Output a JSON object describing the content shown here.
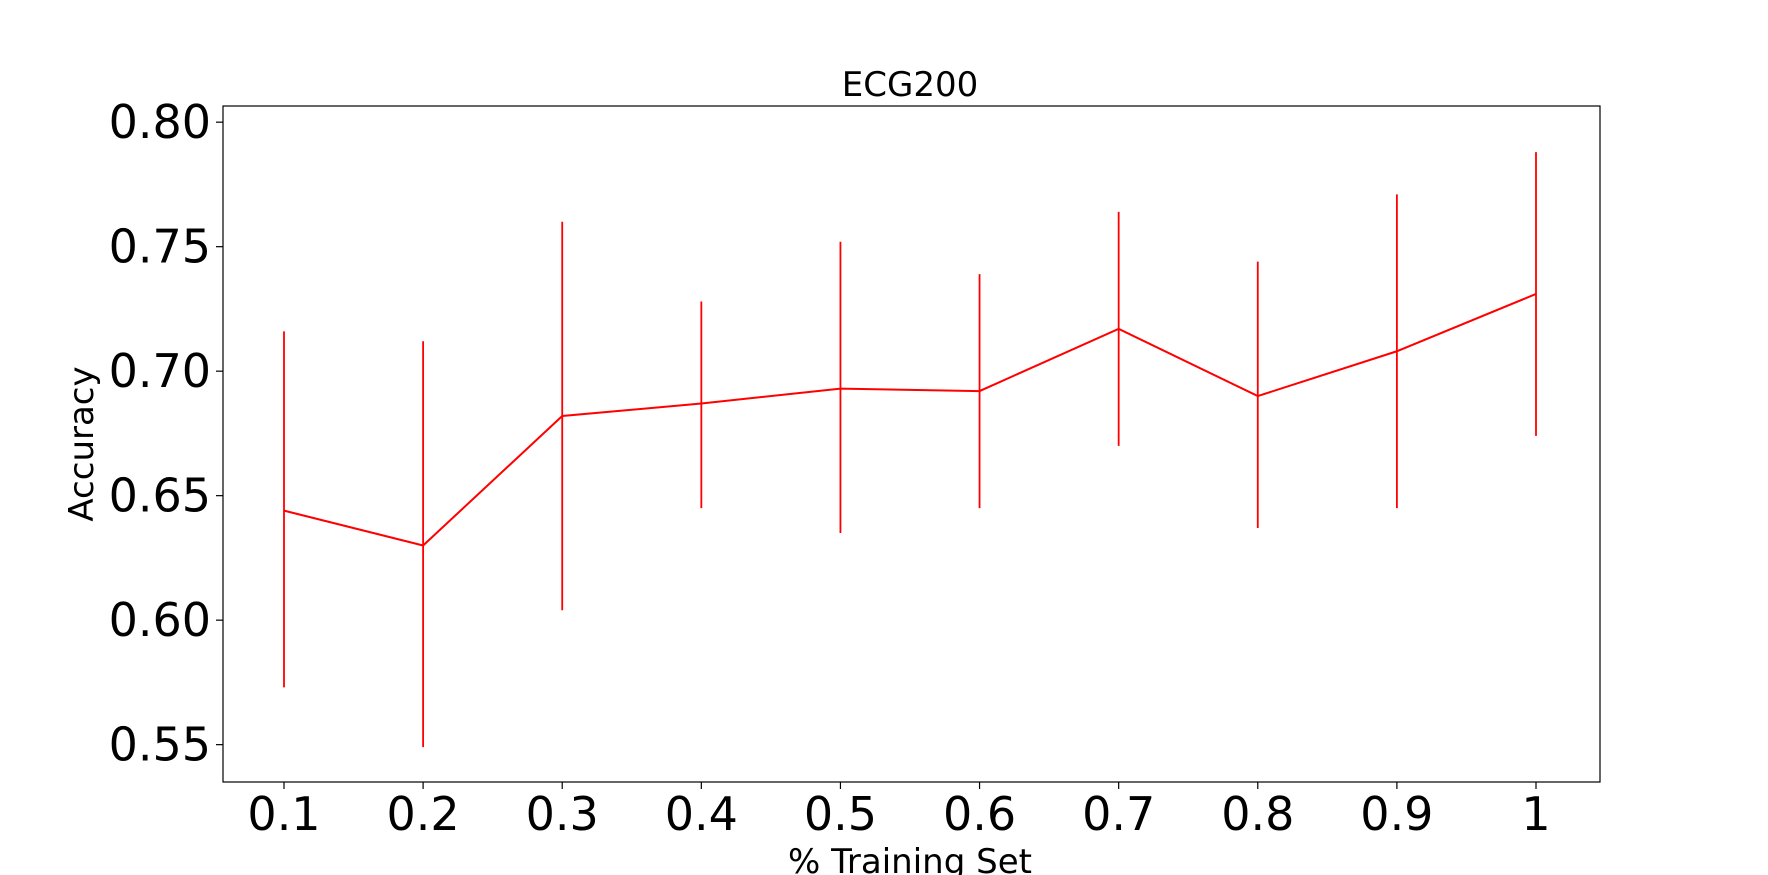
{
  "chart_data": {
    "type": "line",
    "title": "ECG200",
    "xlabel": "% Training Set",
    "ylabel": "Accuracy",
    "categories": [
      "0.1",
      "0.2",
      "0.3",
      "0.4",
      "0.5",
      "0.6",
      "0.7",
      "0.8",
      "0.9",
      "1"
    ],
    "series": [
      {
        "values": [
          0.644,
          0.63,
          0.682,
          0.687,
          0.693,
          0.692,
          0.717,
          0.69,
          0.708,
          0.731
        ],
        "error_low": [
          0.573,
          0.549,
          0.604,
          0.645,
          0.635,
          0.645,
          0.67,
          0.637,
          0.645,
          0.674
        ],
        "error_high": [
          0.716,
          0.712,
          0.76,
          0.728,
          0.752,
          0.739,
          0.764,
          0.744,
          0.771,
          0.788
        ],
        "color": "#ff0000"
      }
    ],
    "ylim": [
      0.535,
      0.8065
    ],
    "yticks": [
      "0.55",
      "0.60",
      "0.65",
      "0.70",
      "0.75",
      "0.80"
    ],
    "grid": false,
    "legend": "none"
  }
}
